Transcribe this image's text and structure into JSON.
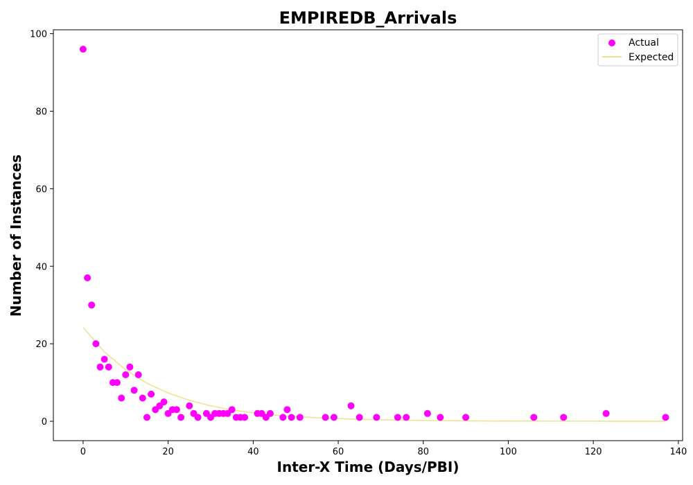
{
  "chart_data": {
    "type": "scatter",
    "title": "EMPIREDB_Arrivals",
    "xlabel": "Inter-X Time (Days/PBI)",
    "ylabel": "Number of Instances",
    "xlim": [
      -7,
      141
    ],
    "ylim": [
      -5,
      101
    ],
    "xticks": [
      0,
      20,
      40,
      60,
      80,
      100,
      120,
      140
    ],
    "yticks": [
      0,
      20,
      40,
      60,
      80,
      100
    ],
    "grid": false,
    "legend_position": "top-right",
    "series": [
      {
        "name": "Actual",
        "kind": "scatter",
        "color": "#ff00ff",
        "points": [
          [
            0,
            96
          ],
          [
            1,
            37
          ],
          [
            2,
            30
          ],
          [
            3,
            20
          ],
          [
            4,
            14
          ],
          [
            5,
            16
          ],
          [
            6,
            14
          ],
          [
            7,
            10
          ],
          [
            8,
            10
          ],
          [
            9,
            6
          ],
          [
            10,
            12
          ],
          [
            11,
            14
          ],
          [
            12,
            8
          ],
          [
            13,
            12
          ],
          [
            14,
            6
          ],
          [
            15,
            1
          ],
          [
            16,
            7
          ],
          [
            17,
            3
          ],
          [
            18,
            4
          ],
          [
            19,
            5
          ],
          [
            20,
            2
          ],
          [
            21,
            3
          ],
          [
            22,
            3
          ],
          [
            23,
            1
          ],
          [
            25,
            4
          ],
          [
            26,
            2
          ],
          [
            27,
            1
          ],
          [
            29,
            2
          ],
          [
            30,
            1
          ],
          [
            31,
            2
          ],
          [
            32,
            2
          ],
          [
            33,
            2
          ],
          [
            34,
            2
          ],
          [
            35,
            3
          ],
          [
            36,
            1
          ],
          [
            37,
            1
          ],
          [
            38,
            1
          ],
          [
            41,
            2
          ],
          [
            42,
            2
          ],
          [
            43,
            1
          ],
          [
            44,
            2
          ],
          [
            47,
            1
          ],
          [
            48,
            3
          ],
          [
            49,
            1
          ],
          [
            51,
            1
          ],
          [
            57,
            1
          ],
          [
            59,
            1
          ],
          [
            63,
            4
          ],
          [
            65,
            1
          ],
          [
            69,
            1
          ],
          [
            74,
            1
          ],
          [
            76,
            1
          ],
          [
            81,
            2
          ],
          [
            84,
            1
          ],
          [
            90,
            1
          ],
          [
            106,
            1
          ],
          [
            113,
            1
          ],
          [
            123,
            2
          ],
          [
            137,
            1
          ]
        ]
      },
      {
        "name": "Expected",
        "kind": "line",
        "color": "#f0e08a",
        "points": [
          [
            0,
            24.2
          ],
          [
            5,
            17.9
          ],
          [
            10,
            13.3
          ],
          [
            15,
            9.8
          ],
          [
            20,
            7.3
          ],
          [
            25,
            5.4
          ],
          [
            30,
            4.0
          ],
          [
            35,
            2.9
          ],
          [
            40,
            2.2
          ],
          [
            45,
            1.6
          ],
          [
            50,
            1.2
          ],
          [
            55,
            0.9
          ],
          [
            60,
            0.7
          ],
          [
            65,
            0.5
          ],
          [
            70,
            0.4
          ],
          [
            80,
            0.2
          ],
          [
            90,
            0.1
          ],
          [
            100,
            0.05
          ],
          [
            110,
            0.03
          ],
          [
            120,
            0.02
          ],
          [
            130,
            0.01
          ],
          [
            137,
            0.01
          ]
        ]
      }
    ]
  }
}
